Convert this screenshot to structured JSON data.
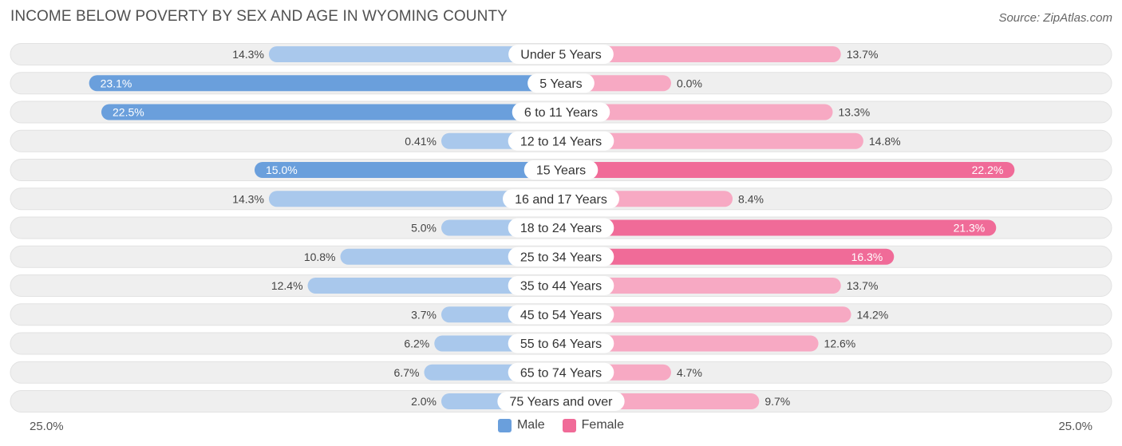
{
  "header": {
    "title": "INCOME BELOW POVERTY BY SEX AND AGE IN WYOMING COUNTY",
    "source": "Source: ZipAtlas.com"
  },
  "colors": {
    "male_strong": "#6a9fdc",
    "male_light": "#a9c8ec",
    "female_strong": "#f06b98",
    "female_light": "#f7a9c3",
    "row_background": "#efefef"
  },
  "chart_data": {
    "type": "bar",
    "orientation": "horizontal-diverging",
    "categories": [
      "Under 5 Years",
      "5 Years",
      "6 to 11 Years",
      "12 to 14 Years",
      "15 Years",
      "16 and 17 Years",
      "18 to 24 Years",
      "25 to 34 Years",
      "35 to 44 Years",
      "45 to 54 Years",
      "55 to 64 Years",
      "65 to 74 Years",
      "75 Years and over"
    ],
    "series": [
      {
        "name": "Male",
        "values": [
          14.3,
          23.1,
          22.5,
          0.41,
          15.0,
          14.3,
          5.0,
          10.8,
          12.4,
          3.7,
          6.2,
          6.7,
          2.0
        ],
        "labels": [
          "14.3%",
          "23.1%",
          "22.5%",
          "0.41%",
          "15.0%",
          "14.3%",
          "5.0%",
          "10.8%",
          "12.4%",
          "3.7%",
          "6.2%",
          "6.7%",
          "2.0%"
        ]
      },
      {
        "name": "Female",
        "values": [
          13.7,
          0.0,
          13.3,
          14.8,
          22.2,
          8.4,
          21.3,
          16.3,
          13.7,
          14.2,
          12.6,
          4.7,
          9.7
        ],
        "labels": [
          "13.7%",
          "0.0%",
          "13.3%",
          "14.8%",
          "22.2%",
          "8.4%",
          "21.3%",
          "16.3%",
          "13.7%",
          "14.2%",
          "12.6%",
          "4.7%",
          "9.7%"
        ]
      }
    ],
    "xlim": [
      -25,
      25
    ],
    "axis_left_label": "25.0%",
    "axis_right_label": "25.0%",
    "legend_position": "bottom-center"
  },
  "legend": {
    "male": "Male",
    "female": "Female"
  }
}
